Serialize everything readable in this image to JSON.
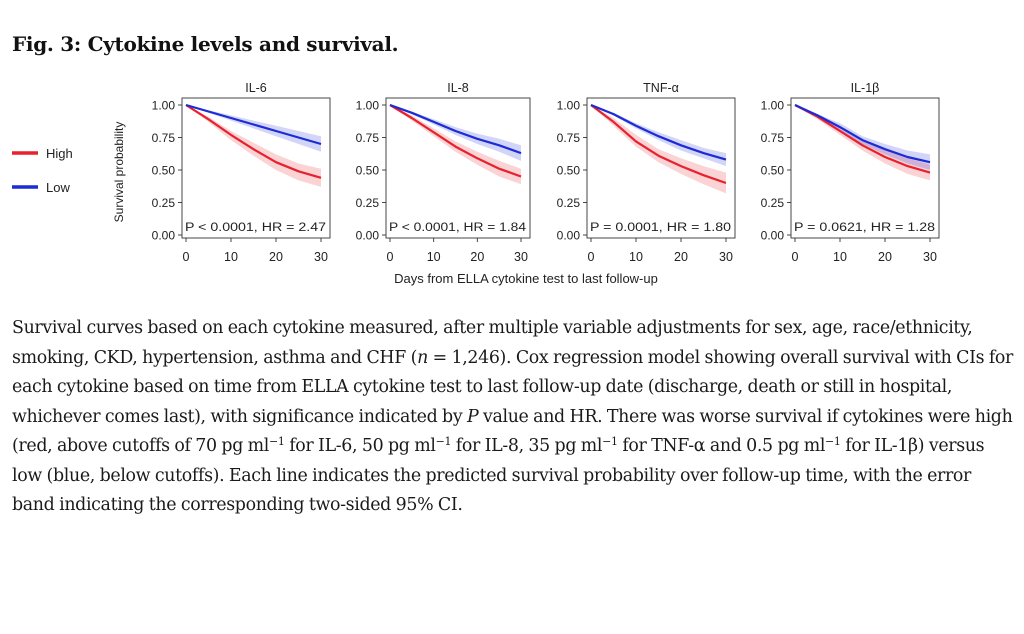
{
  "figure_title": "Fig. 3: Cytokine levels and survival.",
  "legend": [
    {
      "label": "High",
      "color": "#e8212f"
    },
    {
      "label": "Low",
      "color": "#1d2bd6"
    }
  ],
  "shared_xlabel": "Days from ELLA cytokine test to last follow-up",
  "shared_ylabel": "Survival probability",
  "chart_data": [
    {
      "type": "line",
      "title": "IL-6",
      "x": [
        0,
        5,
        10,
        15,
        20,
        25,
        30
      ],
      "xticks": [
        0,
        10,
        20,
        30
      ],
      "xlim": [
        0,
        30
      ],
      "yticks": [
        "0.00",
        "0.25",
        "0.50",
        "0.75",
        "1.00"
      ],
      "ylim": [
        0,
        1
      ],
      "series": [
        {
          "name": "High",
          "values": [
            1.0,
            0.89,
            0.77,
            0.66,
            0.56,
            0.49,
            0.44
          ],
          "lower": [
            1.0,
            0.87,
            0.73,
            0.61,
            0.5,
            0.42,
            0.37
          ],
          "upper": [
            1.0,
            0.91,
            0.8,
            0.71,
            0.62,
            0.55,
            0.51
          ]
        },
        {
          "name": "Low",
          "values": [
            1.0,
            0.95,
            0.9,
            0.85,
            0.8,
            0.75,
            0.7
          ],
          "lower": [
            1.0,
            0.94,
            0.88,
            0.82,
            0.76,
            0.7,
            0.64
          ],
          "upper": [
            1.0,
            0.96,
            0.92,
            0.88,
            0.84,
            0.8,
            0.76
          ]
        }
      ],
      "annotation": "P < 0.0001, HR = 2.47"
    },
    {
      "type": "line",
      "title": "IL-8",
      "x": [
        0,
        5,
        10,
        15,
        20,
        25,
        30
      ],
      "xticks": [
        0,
        10,
        20,
        30
      ],
      "xlim": [
        0,
        30
      ],
      "yticks": [
        "0.00",
        "0.25",
        "0.50",
        "0.75",
        "1.00"
      ],
      "ylim": [
        0,
        1
      ],
      "series": [
        {
          "name": "High",
          "values": [
            1.0,
            0.9,
            0.79,
            0.68,
            0.59,
            0.51,
            0.45
          ],
          "lower": [
            1.0,
            0.88,
            0.76,
            0.64,
            0.54,
            0.45,
            0.39
          ],
          "upper": [
            1.0,
            0.92,
            0.82,
            0.72,
            0.64,
            0.57,
            0.51
          ]
        },
        {
          "name": "Low",
          "values": [
            1.0,
            0.94,
            0.87,
            0.8,
            0.74,
            0.69,
            0.63
          ],
          "lower": [
            1.0,
            0.93,
            0.85,
            0.77,
            0.7,
            0.64,
            0.57
          ],
          "upper": [
            1.0,
            0.95,
            0.89,
            0.83,
            0.78,
            0.74,
            0.69
          ]
        }
      ],
      "annotation": "P < 0.0001, HR = 1.84"
    },
    {
      "type": "line",
      "title": "TNF-α",
      "x": [
        0,
        5,
        10,
        15,
        20,
        25,
        30
      ],
      "xticks": [
        0,
        10,
        20,
        30
      ],
      "xlim": [
        0,
        30
      ],
      "yticks": [
        "0.00",
        "0.25",
        "0.50",
        "0.75",
        "1.00"
      ],
      "ylim": [
        0,
        1
      ],
      "series": [
        {
          "name": "High",
          "values": [
            1.0,
            0.87,
            0.72,
            0.61,
            0.53,
            0.46,
            0.4
          ],
          "lower": [
            1.0,
            0.84,
            0.68,
            0.56,
            0.47,
            0.39,
            0.32
          ],
          "upper": [
            1.0,
            0.9,
            0.77,
            0.66,
            0.59,
            0.53,
            0.48
          ]
        },
        {
          "name": "Low",
          "values": [
            1.0,
            0.93,
            0.84,
            0.76,
            0.69,
            0.63,
            0.58
          ],
          "lower": [
            1.0,
            0.92,
            0.82,
            0.73,
            0.65,
            0.59,
            0.53
          ],
          "upper": [
            1.0,
            0.94,
            0.86,
            0.79,
            0.73,
            0.67,
            0.63
          ]
        }
      ],
      "annotation": "P = 0.0001, HR = 1.80"
    },
    {
      "type": "line",
      "title": "IL-1β",
      "x": [
        0,
        5,
        10,
        15,
        20,
        25,
        30
      ],
      "xticks": [
        0,
        10,
        20,
        30
      ],
      "xlim": [
        0,
        30
      ],
      "yticks": [
        "0.00",
        "0.25",
        "0.50",
        "0.75",
        "1.00"
      ],
      "ylim": [
        0,
        1
      ],
      "series": [
        {
          "name": "High",
          "values": [
            1.0,
            0.91,
            0.8,
            0.69,
            0.6,
            0.53,
            0.48
          ],
          "lower": [
            1.0,
            0.89,
            0.77,
            0.65,
            0.55,
            0.47,
            0.42
          ],
          "upper": [
            1.0,
            0.93,
            0.83,
            0.73,
            0.65,
            0.59,
            0.54
          ]
        },
        {
          "name": "Low",
          "values": [
            1.0,
            0.92,
            0.83,
            0.73,
            0.66,
            0.6,
            0.56
          ],
          "lower": [
            1.0,
            0.91,
            0.8,
            0.7,
            0.62,
            0.55,
            0.5
          ],
          "upper": [
            1.0,
            0.93,
            0.86,
            0.76,
            0.7,
            0.65,
            0.62
          ]
        }
      ],
      "annotation": "P = 0.0621, HR = 1.28"
    }
  ],
  "caption": {
    "t1": "Survival curves based on each cytokine measured, after multiple variable adjustments for sex, age, race/ethnicity, smoking, CKD, hypertension, asthma and CHF (",
    "n_italic": "n",
    "t2": " = 1,246). Cox regression model showing overall survival with CIs for each cytokine based on time from ELLA cytokine test to last follow-up date (discharge, death or still in hospital, whichever comes last), with significance indicated by ",
    "p_italic": "P",
    "t3": " value and HR. There was worse survival if cytokines were high (red, above cutoffs of 70 pg ml",
    "sup1": "−1",
    "t4": " for IL-6, 50 pg ml",
    "sup2": "−1",
    "t5": " for IL-8, 35 pg ml",
    "sup3": "−1",
    "t6": " for TNF-α and 0.5 pg ml",
    "sup4": "−1",
    "t7": " for IL-1β) versus low (blue, below cutoffs). Each line indicates the predicted survival probability over follow-up time, with the error band indicating the corresponding two-sided 95% CI."
  }
}
